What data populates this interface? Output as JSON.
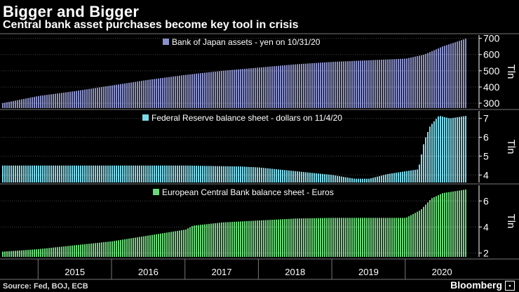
{
  "title": "Bigger and Bigger",
  "subtitle": "Central bank asset purchases become key tool in crisis",
  "source": "Source: Fed, BOJ, ECB",
  "brand": "Bloomberg",
  "chart_data": [
    {
      "type": "bar",
      "legend": "Bank of Japan assets - yen on 10/31/20",
      "ylabel": "Tln",
      "ylim": [
        270,
        720
      ],
      "yticks": [
        "300",
        "400",
        "500",
        "600",
        "700"
      ],
      "color": "#8a90c8",
      "x": [
        2014.5,
        2015.0,
        2015.5,
        2016.0,
        2016.5,
        2017.0,
        2017.5,
        2018.0,
        2018.5,
        2019.0,
        2019.5,
        2020.0,
        2020.25,
        2020.5,
        2020.83
      ],
      "values": [
        300,
        345,
        375,
        410,
        445,
        475,
        500,
        520,
        540,
        555,
        565,
        575,
        600,
        650,
        700
      ]
    },
    {
      "type": "bar",
      "legend": "Federal Reserve balance sheet - dollars on 11/4/20",
      "ylabel": "Tln",
      "ylim": [
        3.6,
        7.4
      ],
      "yticks": [
        "4",
        "5",
        "6",
        "7"
      ],
      "color": "#7fd8e8",
      "x": [
        2014.5,
        2015.0,
        2016.0,
        2017.0,
        2017.75,
        2018.0,
        2018.5,
        2019.0,
        2019.3,
        2019.5,
        2019.75,
        2020.0,
        2020.17,
        2020.25,
        2020.33,
        2020.45,
        2020.6,
        2020.84
      ],
      "values": [
        4.5,
        4.5,
        4.5,
        4.5,
        4.45,
        4.4,
        4.2,
        4.0,
        3.8,
        3.8,
        4.05,
        4.2,
        4.3,
        5.8,
        6.6,
        7.15,
        7.0,
        7.15
      ]
    },
    {
      "type": "bar",
      "legend": "European Central Bank balance sheet - Euros",
      "ylabel": "Tln",
      "ylim": [
        1.7,
        7.2
      ],
      "yticks": [
        "2",
        "4",
        "6"
      ],
      "color": "#6cd67a",
      "x": [
        2014.5,
        2015.0,
        2015.5,
        2016.0,
        2016.5,
        2017.0,
        2017.1,
        2017.5,
        2018.0,
        2018.5,
        2019.0,
        2019.5,
        2019.75,
        2020.0,
        2020.2,
        2020.35,
        2020.5,
        2020.84
      ],
      "values": [
        2.1,
        2.3,
        2.6,
        2.9,
        3.35,
        3.8,
        4.1,
        4.35,
        4.5,
        4.65,
        4.7,
        4.7,
        4.7,
        4.7,
        5.3,
        6.2,
        6.6,
        6.9
      ]
    }
  ],
  "x_axis": {
    "labels": [
      "2015",
      "2016",
      "2017",
      "2018",
      "2019",
      "2020"
    ],
    "range": [
      2014.5,
      2020.9
    ]
  }
}
